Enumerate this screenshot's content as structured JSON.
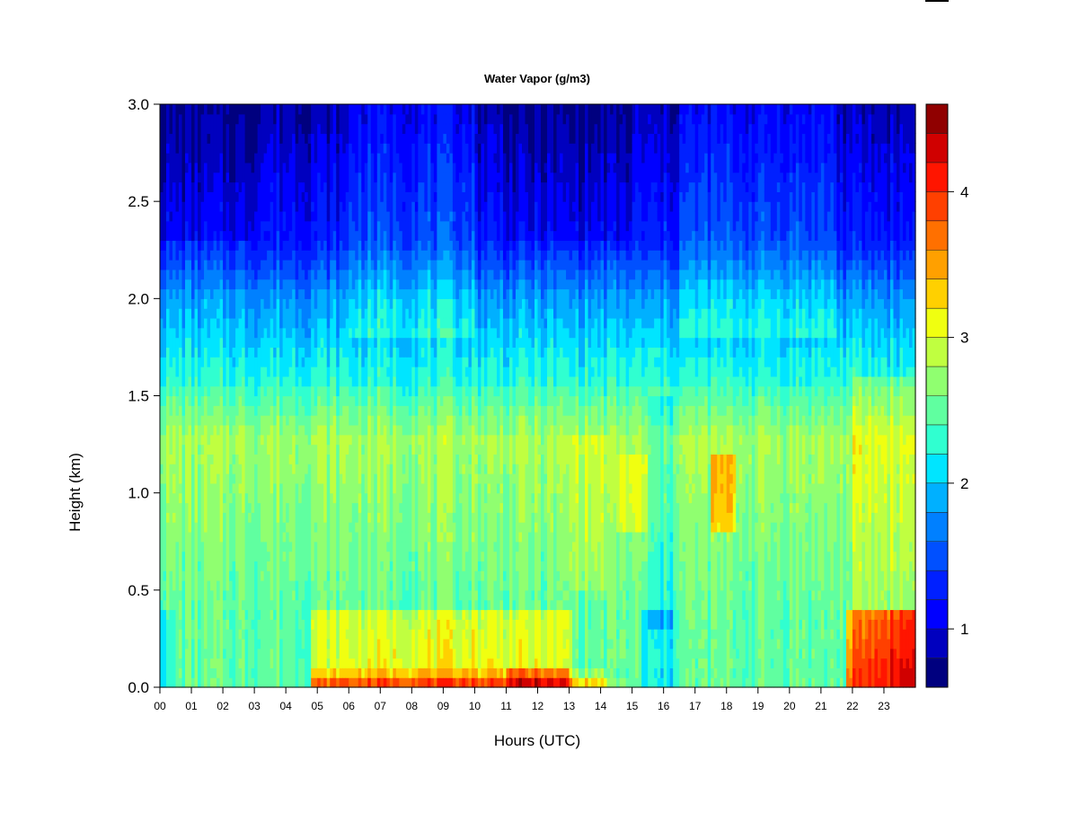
{
  "chart_data": {
    "type": "heatmap",
    "title": "Water Vapor (g/m3)",
    "xlabel": "Hours (UTC)",
    "ylabel": "Height (km)",
    "xlim": [
      0,
      24
    ],
    "ylim": [
      0.0,
      3.0
    ],
    "x_tick_labels": [
      "00",
      "01",
      "02",
      "03",
      "04",
      "05",
      "06",
      "07",
      "08",
      "09",
      "10",
      "11",
      "12",
      "13",
      "14",
      "15",
      "16",
      "17",
      "18",
      "19",
      "20",
      "21",
      "22",
      "23"
    ],
    "y_tick_labels": [
      "0.0",
      "0.5",
      "1.0",
      "1.5",
      "2.0",
      "2.5",
      "3.0"
    ],
    "colorbar": {
      "range": [
        0.6,
        4.6
      ],
      "tick_labels": [
        "1",
        "2",
        "3",
        "4"
      ],
      "tick_values": [
        1,
        2,
        3,
        4
      ],
      "colors": [
        "#00007f",
        "#0000bf",
        "#0000ff",
        "#0020ff",
        "#0050ff",
        "#0080ff",
        "#00b0ff",
        "#00e5ff",
        "#30ffd0",
        "#60ffa0",
        "#90ff70",
        "#c0ff40",
        "#f0ff10",
        "#ffd000",
        "#ffa000",
        "#ff7000",
        "#ff4000",
        "#ff1500",
        "#d00000",
        "#900000"
      ]
    },
    "grid": false,
    "legend": "colorbar-right"
  }
}
